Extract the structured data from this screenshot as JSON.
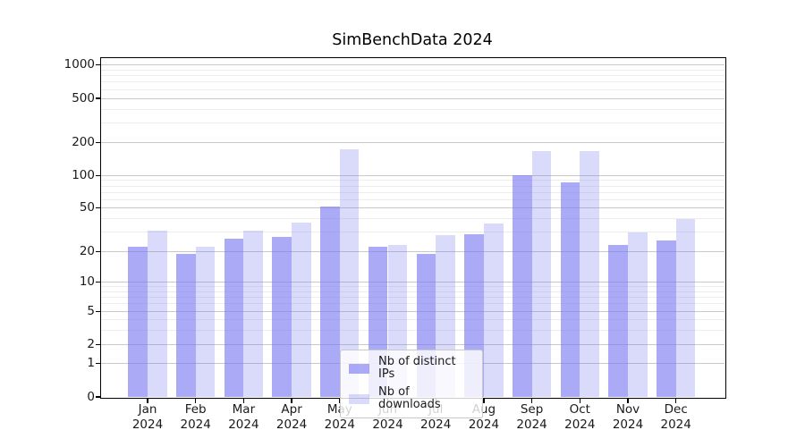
{
  "title": "SimBenchData 2024",
  "chart_data": {
    "type": "bar",
    "title": "SimBenchData 2024",
    "categories": [
      "Jan",
      "Feb",
      "Mar",
      "Apr",
      "May",
      "Jun",
      "Jul",
      "Aug",
      "Sep",
      "Oct",
      "Nov",
      "Dec"
    ],
    "category_year_line": "2024",
    "series": [
      {
        "name": "Nb of distinct IPs",
        "values": [
          22,
          19,
          26,
          27,
          52,
          22,
          19,
          29,
          100,
          86,
          23,
          25
        ],
        "effective_color": "#aaaaf6",
        "alpha": 0.63
      },
      {
        "name": "Nb of downloads",
        "values": [
          31,
          22,
          31,
          37,
          172,
          23,
          28,
          36,
          166,
          166,
          30,
          40
        ],
        "effective_color": "#dbdbfb",
        "alpha": 0.27
      }
    ],
    "xlabel": "",
    "ylabel": "",
    "y_axis": {
      "scale": "symlog",
      "ticks": [
        0,
        1,
        2,
        5,
        10,
        20,
        50,
        100,
        200,
        500,
        1000
      ],
      "minor_ticks": [
        3,
        4,
        6,
        7,
        8,
        9,
        30,
        40,
        60,
        70,
        80,
        90,
        300,
        400,
        600,
        700,
        800,
        900
      ],
      "ylim": [
        0,
        1200
      ]
    },
    "grid": true,
    "legend_position": "lower center"
  },
  "legend": {
    "items": [
      "Nb of distinct IPs",
      "Nb of downloads"
    ]
  },
  "colors": {
    "bar_base_rgb": "120,120,240",
    "series_alphas": [
      0.63,
      0.27
    ],
    "grid_major": "#c9c9c9",
    "grid_minor": "#ededed",
    "spine": "#000000",
    "text": "#1a1a1a",
    "legend_border": "#c9c9c9",
    "background": "#ffffff"
  }
}
